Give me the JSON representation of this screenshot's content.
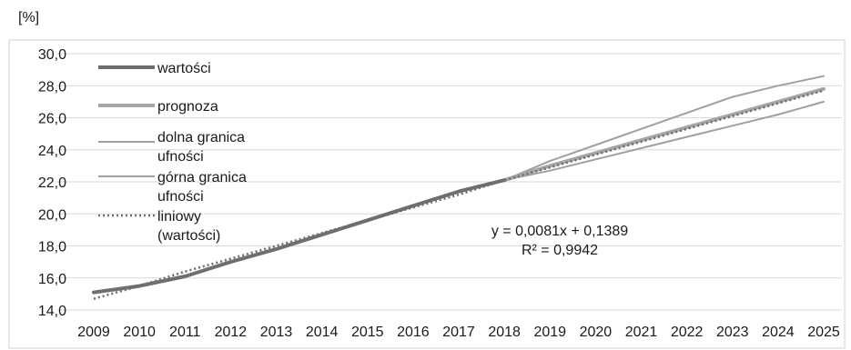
{
  "chart_data": {
    "type": "line",
    "unit_label": "[%]",
    "x": [
      "2009",
      "2010",
      "2011",
      "2012",
      "2013",
      "2014",
      "2015",
      "2016",
      "2017",
      "2018",
      "2019",
      "2020",
      "2021",
      "2022",
      "2023",
      "2024",
      "2025"
    ],
    "ylim": [
      14.0,
      30.0
    ],
    "yticks": [
      "30,0",
      "28,0",
      "26,0",
      "24,0",
      "22,0",
      "20,0",
      "18,0",
      "16,0",
      "14,0"
    ],
    "ytick_values": [
      30,
      28,
      26,
      24,
      22,
      20,
      18,
      16,
      14
    ],
    "grid": true,
    "legend_position": "top-left",
    "series": [
      {
        "name": "wartości",
        "color": "#6e6e6e",
        "style": "thick",
        "values": [
          15.1,
          15.5,
          16.1,
          17.0,
          17.8,
          18.7,
          19.6,
          20.5,
          21.4,
          22.1,
          null,
          null,
          null,
          null,
          null,
          null,
          null
        ]
      },
      {
        "name": "prognoza",
        "color": "#a6a6a6",
        "style": "thick",
        "values": [
          null,
          null,
          null,
          null,
          null,
          null,
          null,
          null,
          null,
          22.1,
          23.0,
          23.8,
          24.6,
          25.4,
          26.2,
          27.0,
          27.8
        ]
      },
      {
        "name": "dolna granica ufności",
        "color": "#a0a0a0",
        "style": "thin",
        "values": [
          null,
          null,
          null,
          null,
          null,
          null,
          null,
          null,
          null,
          22.1,
          22.7,
          23.4,
          24.1,
          24.8,
          25.5,
          26.2,
          27.0
        ]
      },
      {
        "name": "górna granica ufności",
        "color": "#a0a0a0",
        "style": "thin",
        "values": [
          null,
          null,
          null,
          null,
          null,
          null,
          null,
          null,
          null,
          22.1,
          23.3,
          24.3,
          25.3,
          26.3,
          27.3,
          28.0,
          28.6
        ]
      },
      {
        "name": "liniowy (wartości)",
        "color": "#6e6e6e",
        "style": "dotted",
        "values": [
          14.7,
          15.5,
          16.4,
          17.2,
          18.0,
          18.8,
          19.6,
          20.4,
          21.2,
          22.1,
          22.9,
          23.7,
          24.5,
          25.3,
          26.1,
          26.9,
          27.7
        ]
      }
    ],
    "annotations": [
      "y = 0,0081x + 0,1389",
      "R² = 0,9942"
    ]
  }
}
